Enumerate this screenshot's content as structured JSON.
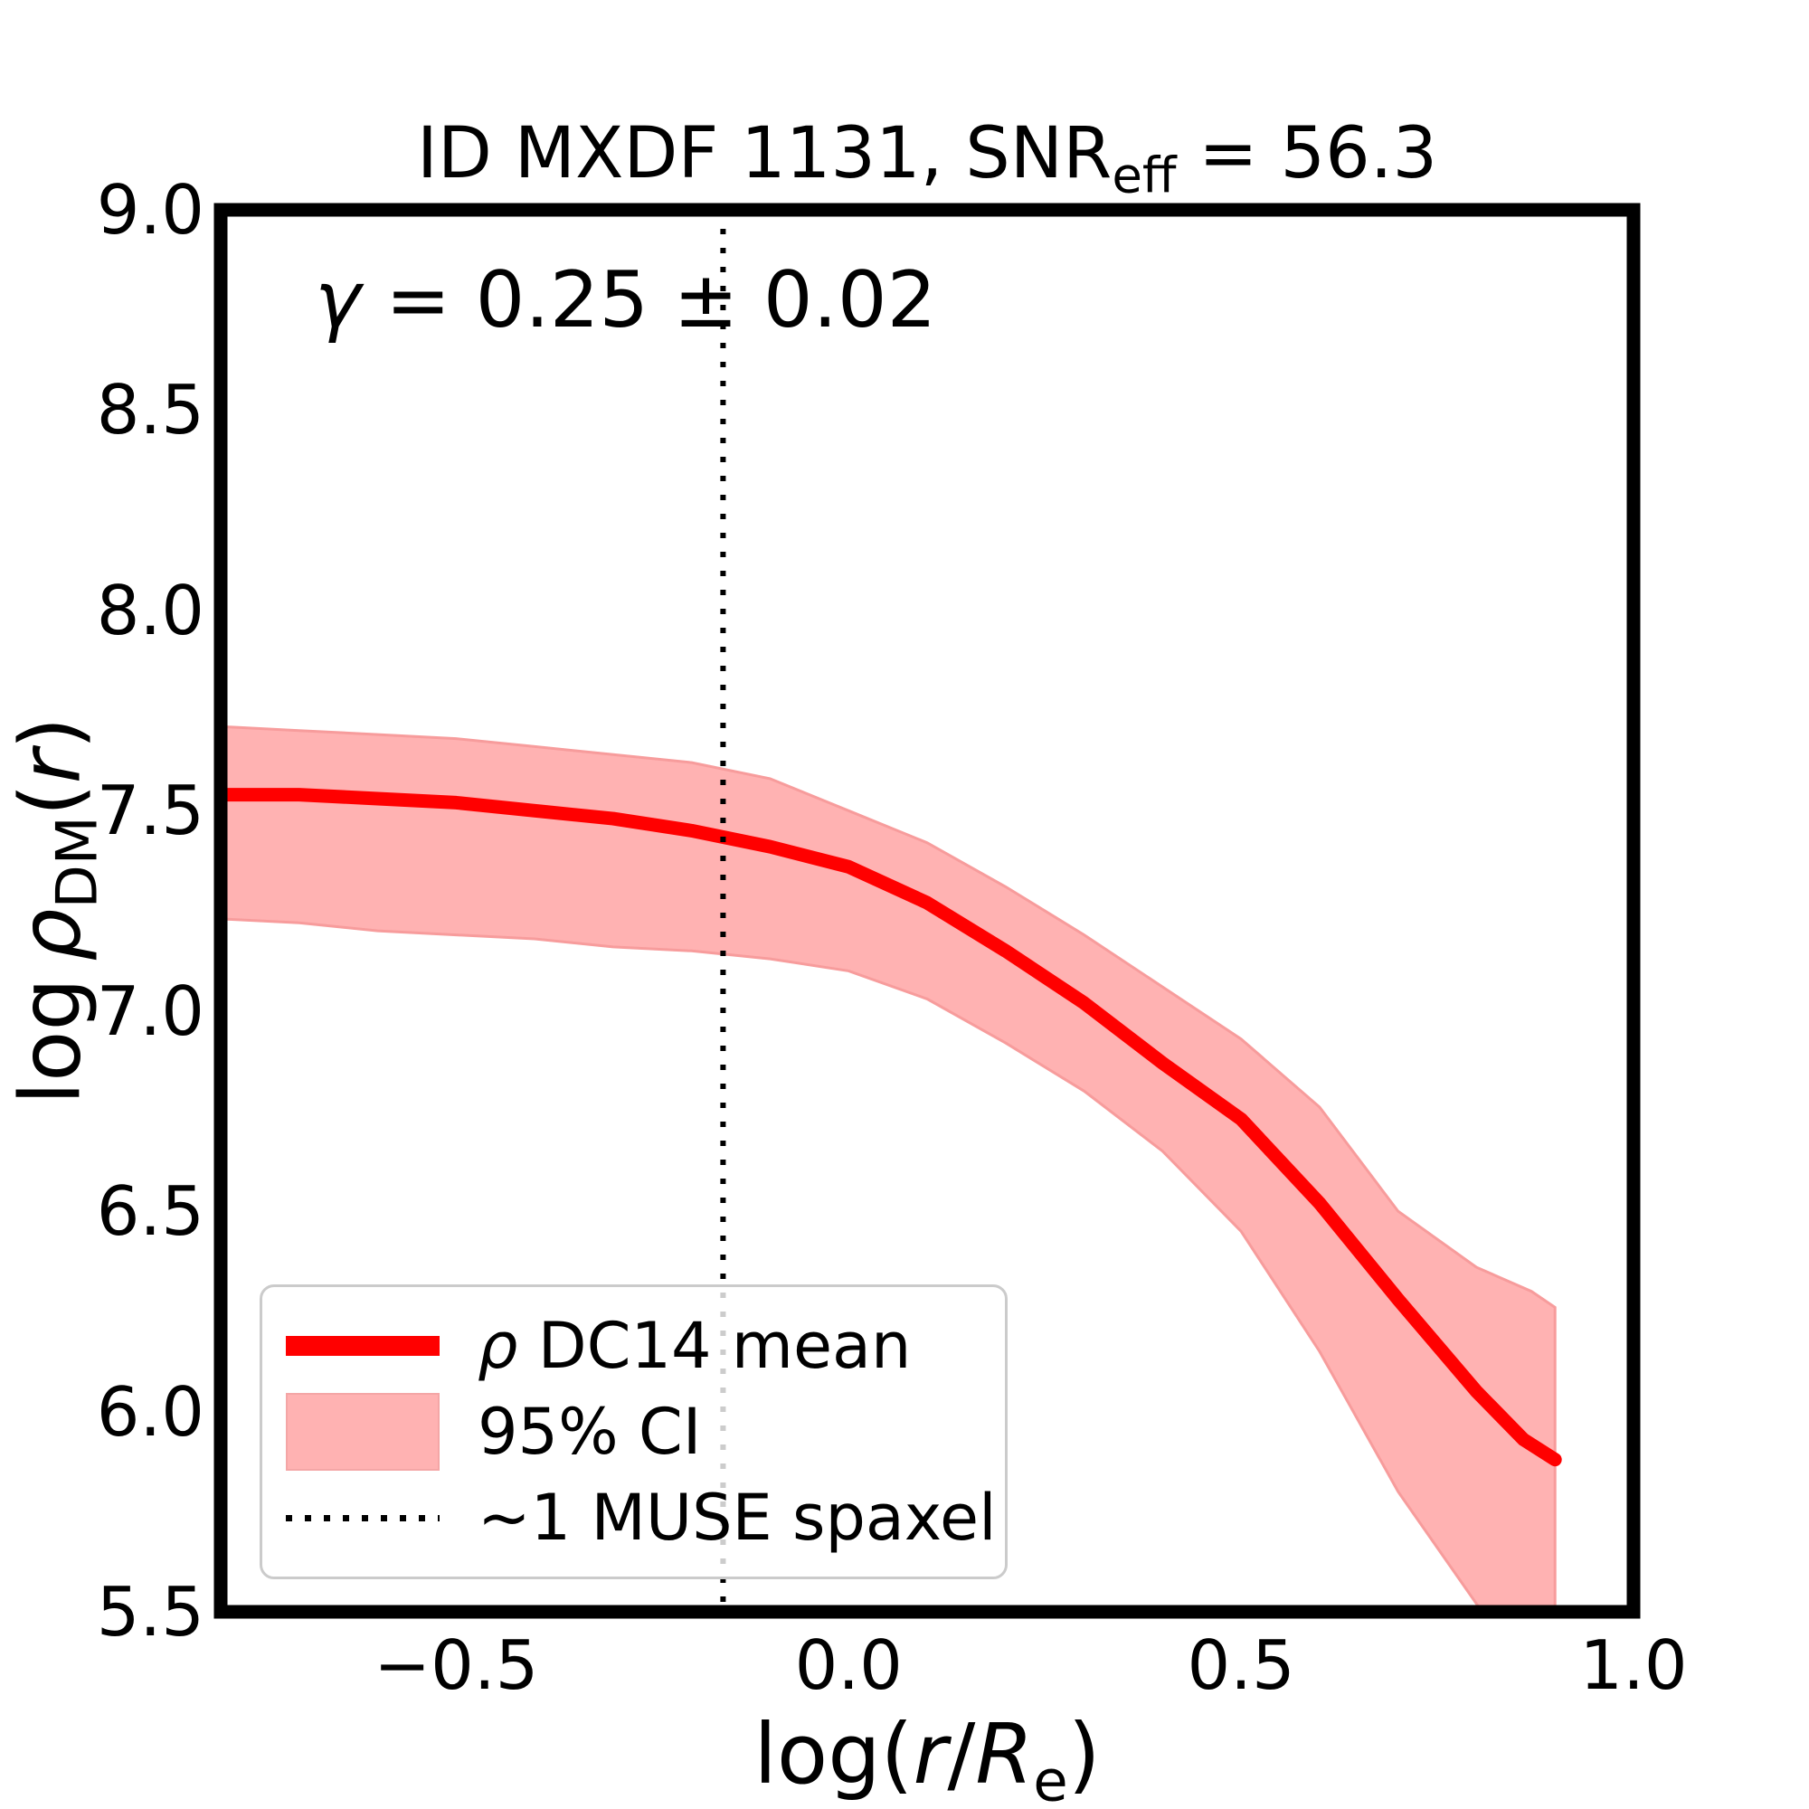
{
  "title": {
    "prefix": "ID MXDF 1131, SNR",
    "subscript": "eff",
    "suffix": " = 56.3"
  },
  "annotation": {
    "gamma": "γ",
    "rest": " = 0.25 ± 0.02"
  },
  "labels": {
    "ylabel_log": "log",
    "ylabel_rho": "ρ",
    "ylabel_sub": "DM",
    "ylabel_open": "(",
    "ylabel_r": "r",
    "ylabel_close": ")",
    "xlabel_log": "log(",
    "xlabel_r": "r",
    "xlabel_slash": "/",
    "xlabel_R": "R",
    "xlabel_sub": "e",
    "xlabel_close": ")"
  },
  "legend": {
    "item1_symbol": "ρ",
    "item1_text": " DC14 mean",
    "item2_text": "95% CI",
    "item3_text": "~1 MUSE spaxel"
  },
  "chart_data": {
    "type": "line",
    "title": "ID MXDF 1131, SNR_eff = 56.3",
    "xlabel": "log(r/R_e)",
    "ylabel": "log ρ_DM(r)",
    "annotation": "γ = 0.25 ± 0.02",
    "xlim": [
      -0.8,
      1.0
    ],
    "ylim": [
      5.5,
      9.0
    ],
    "grid": false,
    "legend_position": "lower left",
    "legend_entries": [
      "ρ DC14 mean",
      "95% CI",
      "~1 MUSE spaxel"
    ],
    "xticks": [
      {
        "value": -0.5,
        "label": "−0.5"
      },
      {
        "value": 0.0,
        "label": "0.0"
      },
      {
        "value": 0.5,
        "label": "0.5"
      },
      {
        "value": 1.0,
        "label": "1.0"
      }
    ],
    "yticks": [
      {
        "value": 9.0,
        "label": "9.0"
      },
      {
        "value": 8.5,
        "label": "8.5"
      },
      {
        "value": 8.0,
        "label": "8.0"
      },
      {
        "value": 7.5,
        "label": "7.5"
      },
      {
        "value": 7.0,
        "label": "7.0"
      },
      {
        "value": 6.5,
        "label": "6.5"
      },
      {
        "value": 6.0,
        "label": "6.0"
      },
      {
        "value": 5.5,
        "label": "5.5"
      }
    ],
    "series": [
      {
        "name": "ρ DC14 mean",
        "points": [
          [
            -0.8,
            7.54
          ],
          [
            -0.7,
            7.54
          ],
          [
            -0.6,
            7.53
          ],
          [
            -0.5,
            7.52
          ],
          [
            -0.4,
            7.5
          ],
          [
            -0.3,
            7.48
          ],
          [
            -0.2,
            7.45
          ],
          [
            -0.1,
            7.41
          ],
          [
            0.0,
            7.36
          ],
          [
            0.1,
            7.27
          ],
          [
            0.2,
            7.15
          ],
          [
            0.3,
            7.02
          ],
          [
            0.4,
            6.87
          ],
          [
            0.5,
            6.73
          ],
          [
            0.6,
            6.52
          ],
          [
            0.7,
            6.28
          ],
          [
            0.8,
            6.05
          ],
          [
            0.86,
            5.93
          ],
          [
            0.9,
            5.88
          ]
        ]
      },
      {
        "name": "95% CI upper",
        "points": [
          [
            -0.8,
            7.71
          ],
          [
            -0.7,
            7.7
          ],
          [
            -0.6,
            7.69
          ],
          [
            -0.5,
            7.68
          ],
          [
            -0.4,
            7.66
          ],
          [
            -0.3,
            7.64
          ],
          [
            -0.2,
            7.62
          ],
          [
            -0.1,
            7.58
          ],
          [
            0.0,
            7.5
          ],
          [
            0.1,
            7.42
          ],
          [
            0.2,
            7.31
          ],
          [
            0.3,
            7.19
          ],
          [
            0.4,
            7.06
          ],
          [
            0.5,
            6.93
          ],
          [
            0.6,
            6.76
          ],
          [
            0.7,
            6.5
          ],
          [
            0.8,
            6.36
          ],
          [
            0.87,
            6.3
          ],
          [
            0.9,
            6.26
          ]
        ]
      },
      {
        "name": "95% CI lower",
        "points": [
          [
            -0.8,
            7.23
          ],
          [
            -0.7,
            7.22
          ],
          [
            -0.6,
            7.2
          ],
          [
            -0.5,
            7.19
          ],
          [
            -0.4,
            7.18
          ],
          [
            -0.3,
            7.16
          ],
          [
            -0.2,
            7.15
          ],
          [
            -0.1,
            7.13
          ],
          [
            0.0,
            7.1
          ],
          [
            0.1,
            7.03
          ],
          [
            0.2,
            6.92
          ],
          [
            0.3,
            6.8
          ],
          [
            0.4,
            6.65
          ],
          [
            0.5,
            6.45
          ],
          [
            0.6,
            6.15
          ],
          [
            0.7,
            5.8
          ],
          [
            0.8,
            5.52
          ],
          [
            0.9,
            5.25
          ]
        ]
      }
    ],
    "vline": {
      "x": -0.16,
      "label": "~1 MUSE spaxel",
      "style": "dotted"
    },
    "colors": {
      "mean_line": "#ff0000",
      "ci_fill": "rgba(255,0,0,0.30)",
      "ci_edge": "#f79c9c",
      "vline": "#000000",
      "frame": "#000000"
    }
  }
}
